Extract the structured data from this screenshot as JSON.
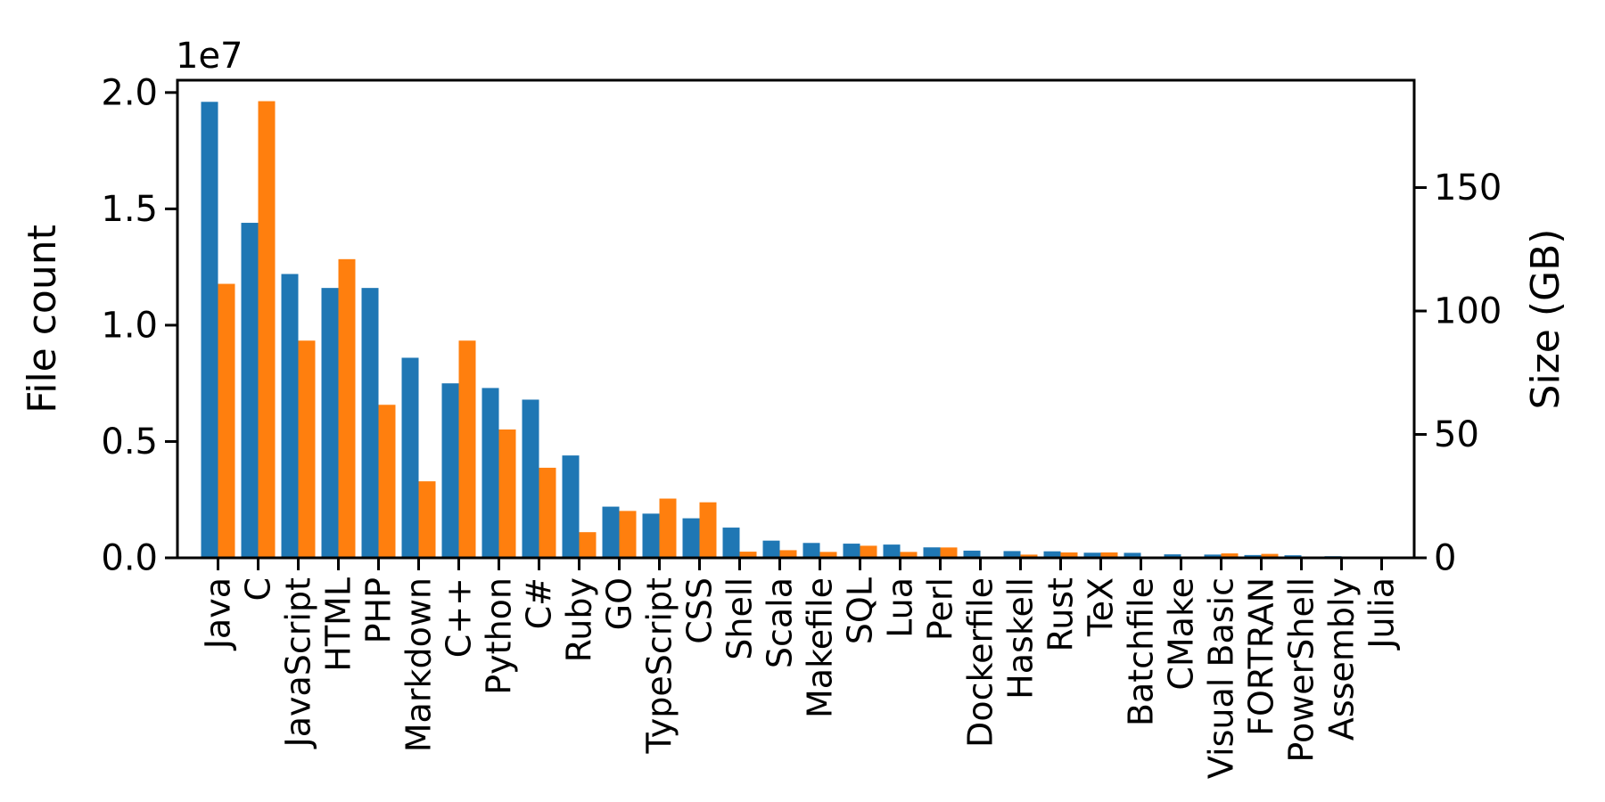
{
  "chart_data": {
    "type": "bar",
    "title": "",
    "grid": false,
    "legend": "none",
    "background_color": "#ffffff",
    "categories": [
      "Java",
      "C",
      "JavaScript",
      "HTML",
      "PHP",
      "Markdown",
      "C++",
      "Python",
      "C#",
      "Ruby",
      "GO",
      "TypeScript",
      "CSS",
      "Shell",
      "Scala",
      "Makefile",
      "SQL",
      "Lua",
      "Perl",
      "Dockerfile",
      "Haskell",
      "Rust",
      "TeX",
      "Batchfile",
      "CMake",
      "Visual Basic",
      "FORTRAN",
      "PowerShell",
      "Assembly",
      "Julia"
    ],
    "series": [
      {
        "name": "File count",
        "axis": "left",
        "color": "#1f77b4",
        "values": [
          19600000,
          14400000,
          12200000,
          11600000,
          11600000,
          8600000,
          7500000,
          7300000,
          6800000,
          4400000,
          2200000,
          1900000,
          1700000,
          1300000,
          740000,
          640000,
          610000,
          570000,
          450000,
          310000,
          290000,
          280000,
          220000,
          215000,
          150000,
          140000,
          120000,
          110000,
          70000,
          30000
        ]
      },
      {
        "name": "Size (GB)",
        "axis": "right",
        "color": "#ff7f0e",
        "values": [
          111,
          185,
          88,
          121,
          62,
          31,
          88,
          52,
          36.5,
          10.4,
          19,
          24,
          22.5,
          2.5,
          3.1,
          2.4,
          4.9,
          2.4,
          4.2,
          0.3,
          1.3,
          2.2,
          2.2,
          0.2,
          0.1,
          1.8,
          1.6,
          0.3,
          0.4,
          0.1
        ]
      }
    ],
    "left_axis": {
      "label": "File count",
      "color": "#1f77b4",
      "offset_text": "1e7",
      "min": 0,
      "max": 20530000,
      "tick_values": [
        0,
        5000000,
        10000000,
        15000000,
        20000000
      ],
      "tick_labels": [
        "0.0",
        "0.5",
        "1.0",
        "1.5",
        "2.0"
      ]
    },
    "right_axis": {
      "label": "Size (GB)",
      "color": "#ff7f0e",
      "min": 0,
      "max": 193.5,
      "tick_values": [
        0,
        50,
        100,
        150
      ],
      "tick_labels": [
        "0",
        "50",
        "100",
        "150"
      ]
    },
    "xlabel": "",
    "ylabel_left": "File count",
    "ylabel_right": "Size (GB)"
  }
}
